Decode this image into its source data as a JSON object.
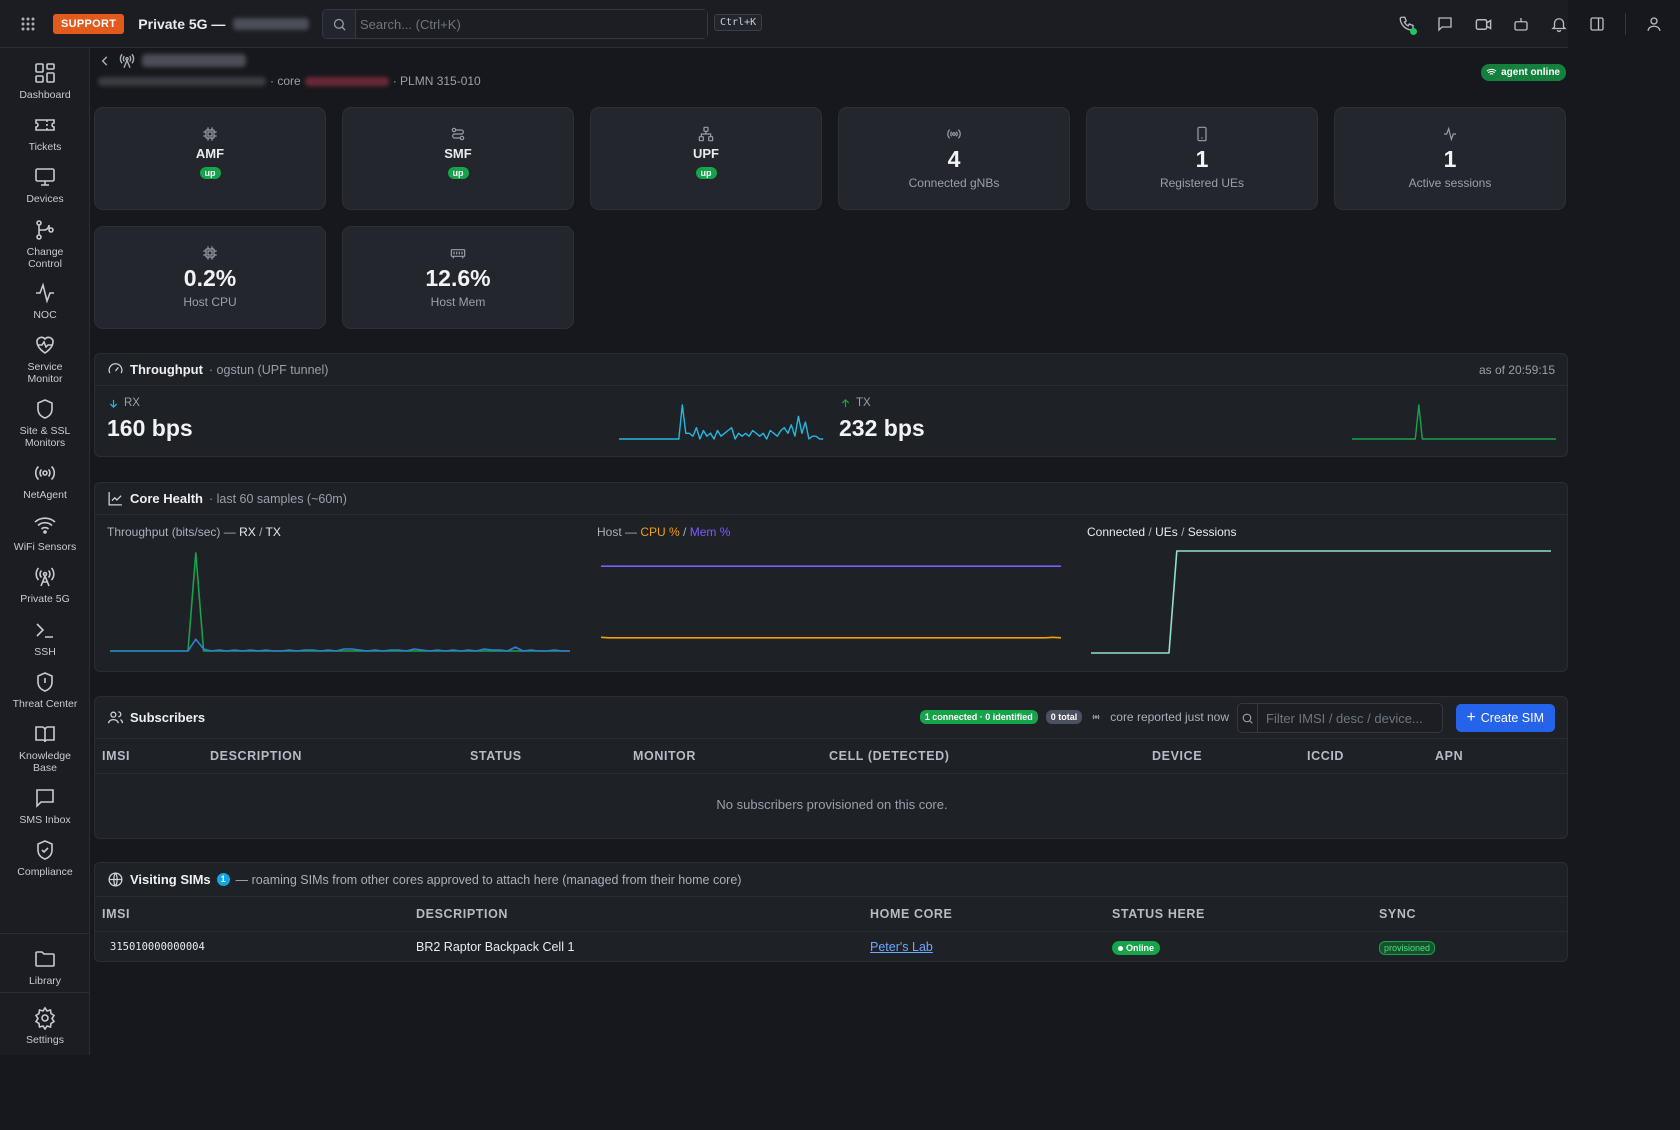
{
  "topbar": {
    "support_label": "SUPPORT",
    "app_title": "Private 5G —",
    "search_placeholder": "Search... (Ctrl+K)",
    "shortcut": "Ctrl+K"
  },
  "sidebar": {
    "items": [
      {
        "label": "Dashboard",
        "icon": "dashboard-icon"
      },
      {
        "label": "Tickets",
        "icon": "ticket-icon"
      },
      {
        "label": "Devices",
        "icon": "monitor-icon"
      },
      {
        "label": "Change Control",
        "icon": "git-branch-icon"
      },
      {
        "label": "NOC",
        "icon": "activity-icon"
      },
      {
        "label": "Service Monitor",
        "icon": "heart-pulse-icon"
      },
      {
        "label": "Site & SSL Monitors",
        "icon": "shield-icon"
      },
      {
        "label": "NetAgent",
        "icon": "radio-icon"
      },
      {
        "label": "WiFi Sensors",
        "icon": "wifi-icon"
      },
      {
        "label": "Private 5G",
        "icon": "antenna-icon"
      },
      {
        "label": "SSH",
        "icon": "terminal-icon"
      },
      {
        "label": "Threat Center",
        "icon": "shield-alert-icon"
      },
      {
        "label": "Knowledge Base",
        "icon": "book-icon"
      },
      {
        "label": "SMS Inbox",
        "icon": "message-icon"
      },
      {
        "label": "Compliance",
        "icon": "shield-check-icon"
      }
    ],
    "bottom": [
      {
        "label": "Library",
        "icon": "folder-icon"
      },
      {
        "label": "Settings",
        "icon": "gear-icon"
      }
    ]
  },
  "header": {
    "crumb_core": "· core",
    "crumb_plmn": "· PLMN 315-010",
    "agent_status": "agent online"
  },
  "cards": {
    "amf": {
      "name": "AMF",
      "status": "up"
    },
    "smf": {
      "name": "SMF",
      "status": "up"
    },
    "upf": {
      "name": "UPF",
      "status": "up"
    },
    "gnbs": {
      "value": "4",
      "label": "Connected gNBs"
    },
    "ues": {
      "value": "1",
      "label": "Registered UEs"
    },
    "sessions": {
      "value": "1",
      "label": "Active sessions"
    },
    "cpu": {
      "value": "0.2%",
      "label": "Host CPU"
    },
    "mem": {
      "value": "12.6%",
      "label": "Host Mem"
    }
  },
  "throughput": {
    "title": "Throughput",
    "subtitle": "· ogstun (UPF tunnel)",
    "as_of": "as of 20:59:15",
    "rx_label": "RX",
    "rx_value": "160 bps",
    "tx_label": "TX",
    "tx_value": "232 bps",
    "rx_color": "#22b8e0",
    "tx_color": "#16a34a"
  },
  "core_health": {
    "title": "Core Health",
    "subtitle": "· last 60 samples (~60m)",
    "chart1": {
      "prefix": "Throughput (bits/sec) —",
      "a": "RX",
      "sep": "/",
      "b": "TX"
    },
    "chart2": {
      "prefix": "Host —",
      "a": "CPU %",
      "sep": "/",
      "b": "Mem %"
    },
    "chart3": {
      "a": "Connected",
      "sep1": "/",
      "b": "UEs",
      "sep2": "/",
      "c": "Sessions"
    }
  },
  "chart_data": [
    {
      "type": "line",
      "title": "Throughput (bits/sec) — RX / TX",
      "series": [
        {
          "name": "RX",
          "color": "#2f7fd0",
          "values": [
            0,
            0,
            0,
            0,
            0,
            0,
            0,
            0,
            0,
            0,
            0,
            12,
            2,
            0,
            1,
            0,
            1,
            0,
            1,
            0,
            1,
            0,
            0,
            1,
            0,
            1,
            1,
            0,
            1,
            0,
            2,
            2,
            1,
            0,
            1,
            0,
            1,
            1,
            0,
            2,
            1,
            0,
            1,
            0,
            1,
            0,
            1,
            0,
            2,
            1,
            1,
            0,
            4,
            0,
            1,
            0,
            0,
            1,
            0,
            0
          ]
        },
        {
          "name": "TX",
          "color": "#16a34a",
          "values": [
            0,
            0,
            0,
            0,
            0,
            0,
            0,
            0,
            0,
            0,
            0,
            100,
            0,
            0,
            0,
            0,
            0,
            0,
            0,
            0,
            0,
            0,
            0,
            0,
            0,
            0,
            0,
            0,
            0,
            0,
            0,
            0,
            0,
            0,
            0,
            0,
            0,
            0,
            0,
            0,
            0,
            0,
            0,
            0,
            0,
            0,
            0,
            0,
            0,
            0,
            0,
            0,
            0,
            0,
            0,
            0,
            0,
            0,
            0,
            0
          ]
        }
      ]
    },
    {
      "type": "line",
      "title": "Host — CPU % / Mem %",
      "series": [
        {
          "name": "CPU %",
          "color": "#f59e0b",
          "values": [
            0.3,
            0.2,
            0.2,
            0.2,
            0.2,
            0.2,
            0.2,
            0.2,
            0.2,
            0.2,
            0.2,
            0.2,
            0.2,
            0.2,
            0.2,
            0.2,
            0.2,
            0.2,
            0.2,
            0.2,
            0.2,
            0.2,
            0.2,
            0.2,
            0.2,
            0.2,
            0.2,
            0.2,
            0.2,
            0.2,
            0.2,
            0.2,
            0.2,
            0.2,
            0.2,
            0.2,
            0.2,
            0.2,
            0.2,
            0.2,
            0.2,
            0.2,
            0.2,
            0.2,
            0.2,
            0.2,
            0.2,
            0.2,
            0.2,
            0.2,
            0.2,
            0.2,
            0.2,
            0.2,
            0.2,
            0.2,
            0.2,
            0.2,
            0.3,
            0.2
          ]
        },
        {
          "name": "Mem %",
          "color": "#7c5cff",
          "values": [
            12.6,
            12.6,
            12.6,
            12.6,
            12.6,
            12.6,
            12.6,
            12.6,
            12.6,
            12.6,
            12.6,
            12.6,
            12.6,
            12.6,
            12.6,
            12.6,
            12.6,
            12.6,
            12.6,
            12.6,
            12.6,
            12.6,
            12.6,
            12.6,
            12.6,
            12.6,
            12.6,
            12.6,
            12.6,
            12.6,
            12.6,
            12.6,
            12.6,
            12.6,
            12.6,
            12.6,
            12.6,
            12.6,
            12.6,
            12.6,
            12.6,
            12.6,
            12.6,
            12.6,
            12.6,
            12.6,
            12.6,
            12.6,
            12.6,
            12.6,
            12.6,
            12.6,
            12.6,
            12.6,
            12.6,
            12.6,
            12.6,
            12.6,
            12.6,
            12.6
          ]
        }
      ]
    },
    {
      "type": "line",
      "title": "Connected / UEs / Sessions",
      "series": [
        {
          "name": "Connected",
          "color": "#8fe0d2",
          "values": [
            0,
            0,
            0,
            0,
            0,
            0,
            0,
            0,
            0,
            0,
            0,
            4,
            4,
            4,
            4,
            4,
            4,
            4,
            4,
            4,
            4,
            4,
            4,
            4,
            4,
            4,
            4,
            4,
            4,
            4,
            4,
            4,
            4,
            4,
            4,
            4,
            4,
            4,
            4,
            4,
            4,
            4,
            4,
            4,
            4,
            4,
            4,
            4,
            4,
            4,
            4,
            4,
            4,
            4,
            4,
            4,
            4,
            4,
            4,
            4
          ]
        }
      ]
    }
  ],
  "sparklines": {
    "rx": [
      0,
      0,
      0,
      0,
      0,
      0,
      0,
      0,
      0,
      0,
      0,
      0,
      0,
      0,
      0,
      0,
      0,
      0,
      12,
      2,
      2,
      1,
      4,
      0,
      3,
      1,
      2,
      0,
      3,
      1,
      2,
      3,
      4,
      0,
      2,
      1,
      2,
      1,
      3,
      2,
      1,
      2,
      0,
      3,
      2,
      1,
      3,
      4,
      2,
      5,
      1,
      8,
      2,
      6,
      0,
      1,
      1,
      0,
      0
    ],
    "tx": [
      0,
      0,
      0,
      0,
      0,
      0,
      0,
      0,
      0,
      0,
      0,
      0,
      0,
      0,
      0,
      0,
      0,
      0,
      0,
      14,
      0,
      0,
      0,
      0,
      0,
      0,
      0,
      0,
      0,
      0,
      0,
      0,
      0,
      0,
      0,
      0,
      0,
      0,
      0,
      0,
      0,
      0,
      0,
      0,
      0,
      0,
      0,
      0,
      0,
      0,
      0,
      0,
      0,
      0,
      0,
      0,
      0,
      0,
      0
    ]
  },
  "subscribers": {
    "title": "Subscribers",
    "pill_connected": "1 connected · 0 identified",
    "pill_total": "0 total",
    "core_reported": "core reported just now",
    "filter_placeholder": "Filter IMSI / desc / device...",
    "create_label": "Create SIM",
    "columns": [
      "IMSI",
      "DESCRIPTION",
      "STATUS",
      "MONITOR",
      "CELL (DETECTED)",
      "DEVICE",
      "ICCID",
      "APN"
    ],
    "empty_message": "No subscribers provisioned on this core."
  },
  "visiting": {
    "title": "Visiting SIMs",
    "count": "1",
    "subtitle": "— roaming SIMs from other cores approved to attach here (managed from their home core)",
    "columns": [
      "IMSI",
      "DESCRIPTION",
      "HOME CORE",
      "STATUS HERE",
      "SYNC"
    ],
    "rows": [
      {
        "imsi": "315010000000004",
        "description": "BR2 Raptor Backpack Cell 1",
        "home_core": "Peter's Lab",
        "status": "Online",
        "sync": "provisioned"
      }
    ]
  }
}
